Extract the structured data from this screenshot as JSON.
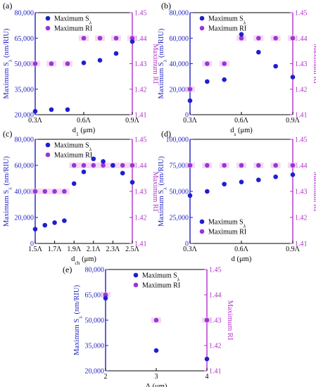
{
  "colors": {
    "left_axis": "#1f1fbf",
    "right_axis": "#b030c8",
    "s_marker": "#1f1fd0",
    "ri_marker": "#9a36d6",
    "ri_glow": "#f2c8f2"
  },
  "chart_data": [
    {
      "type": "scatter",
      "panel_label": "(a)",
      "xlabel": "d",
      "xlabel_sub": "1",
      "xlabel_unit": " (μm)",
      "ylabel_left": "Maximum S",
      "ylabel_left_sub": "λ",
      "ylabel_left_unit": " (nm/RIU)",
      "ylabel_right": "Maximum RI",
      "xlim": [
        0.3,
        0.9
      ],
      "x_ticks": [
        0.3,
        0.6,
        0.9
      ],
      "x_tick_labels": [
        "0.3Λ",
        "0.6Λ",
        "0.9Λ"
      ],
      "ylim_left": [
        20000,
        80000
      ],
      "y_left_ticks": [
        20000,
        35000,
        50000,
        65000,
        80000
      ],
      "y_left_tick_labels": [
        "20,000",
        "35,000",
        "50,000",
        "65,000",
        "80,000"
      ],
      "ylim_right": [
        1.41,
        1.45
      ],
      "y_right_ticks": [
        1.41,
        1.42,
        1.43,
        1.44,
        1.45
      ],
      "y_right_tick_labels": [
        "1.41",
        "1.42",
        "1.43",
        "1.44",
        "1.45"
      ],
      "legend": [
        "Maximum S",
        "Maximum RI"
      ],
      "legend_sub": "λ",
      "legend_position": "top-left",
      "series": [
        {
          "name": "Maximum Sλ",
          "axis": "left",
          "x": [
            0.3,
            0.4,
            0.5,
            0.6,
            0.7,
            0.8,
            0.9
          ],
          "y": [
            22000,
            23000,
            23000,
            50500,
            52000,
            56000,
            63000
          ]
        },
        {
          "name": "Maximum RI",
          "axis": "right",
          "x": [
            0.3,
            0.4,
            0.5,
            0.6,
            0.7,
            0.8,
            0.9
          ],
          "y": [
            1.43,
            1.43,
            1.43,
            1.44,
            1.44,
            1.44,
            1.44
          ]
        }
      ]
    },
    {
      "type": "scatter",
      "panel_label": "(b)",
      "xlabel": "d",
      "xlabel_sub": "s",
      "xlabel_unit": " (μm)",
      "ylabel_left": "Maximum S",
      "ylabel_left_sub": "λ",
      "ylabel_left_unit": " (nm/RIU)",
      "ylabel_right": "Maximum RI",
      "xlim": [
        0.3,
        0.9
      ],
      "x_ticks": [
        0.3,
        0.6,
        0.9
      ],
      "x_tick_labels": [
        "0.3Λ",
        "0.6Λ",
        "0.9Λ"
      ],
      "ylim_left": [
        0,
        80000
      ],
      "y_left_ticks": [
        0,
        20000,
        40000,
        60000,
        80000
      ],
      "y_left_tick_labels": [
        "0",
        "20,000",
        "40,000",
        "60,000",
        "80,000"
      ],
      "ylim_right": [
        1.41,
        1.45
      ],
      "y_right_ticks": [
        1.41,
        1.42,
        1.43,
        1.44,
        1.45
      ],
      "y_right_tick_labels": [
        "1.41",
        "1.42",
        "1.43",
        "1.44",
        "1.45"
      ],
      "legend": [
        "Maximum S",
        "Maximum RI"
      ],
      "legend_sub": "λ",
      "legend_position": "top-left",
      "series": [
        {
          "name": "Maximum Sλ",
          "axis": "left",
          "x": [
            0.3,
            0.4,
            0.5,
            0.6,
            0.7,
            0.8,
            0.9
          ],
          "y": [
            11000,
            26000,
            27500,
            63000,
            49000,
            38000,
            29500
          ]
        },
        {
          "name": "Maximum RI",
          "axis": "right",
          "x": [
            0.3,
            0.4,
            0.5,
            0.6,
            0.7,
            0.8,
            0.9
          ],
          "y": [
            1.42,
            1.43,
            1.43,
            1.44,
            1.44,
            1.44,
            1.44
          ]
        }
      ]
    },
    {
      "type": "scatter",
      "panel_label": "(c)",
      "xlabel": "d",
      "xlabel_sub": "ch",
      "xlabel_unit": " (μm)",
      "ylabel_left": "Maximum S",
      "ylabel_left_sub": "λ",
      "ylabel_left_unit": " (nm/RIU)",
      "ylabel_right": "Maximum RI",
      "xlim": [
        1.5,
        2.5
      ],
      "x_ticks": [
        1.5,
        1.7,
        1.9,
        2.1,
        2.3,
        2.5
      ],
      "x_tick_labels": [
        "1.5Λ",
        "1.7Λ",
        "1.9Λ",
        "2.1Λ",
        "2.3Λ",
        "2.5Λ"
      ],
      "ylim_left": [
        0,
        80000
      ],
      "y_left_ticks": [
        0,
        20000,
        40000,
        60000,
        80000
      ],
      "y_left_tick_labels": [
        "0",
        "20,000",
        "40,000",
        "60,000",
        "80,000"
      ],
      "ylim_right": [
        1.41,
        1.45
      ],
      "y_right_ticks": [
        1.41,
        1.42,
        1.43,
        1.44,
        1.45
      ],
      "y_right_tick_labels": [
        "1.41",
        "1.42",
        "1.43",
        "1.44",
        "1.45"
      ],
      "legend": [
        "Maximum S",
        "Maximum RI"
      ],
      "legend_sub": "λ",
      "legend_position": "top-left",
      "series": [
        {
          "name": "Maximum Sλ",
          "axis": "left",
          "x": [
            1.5,
            1.6,
            1.7,
            1.8,
            1.9,
            2.0,
            2.1,
            2.2,
            2.3,
            2.4,
            2.5
          ],
          "y": [
            11000,
            14000,
            16000,
            17500,
            46000,
            55000,
            65000,
            63000,
            60000,
            54000,
            47000
          ]
        },
        {
          "name": "Maximum RI",
          "axis": "right",
          "x": [
            1.5,
            1.6,
            1.7,
            1.8,
            1.9,
            2.0,
            2.1,
            2.2,
            2.3,
            2.4,
            2.5
          ],
          "y": [
            1.43,
            1.43,
            1.43,
            1.43,
            1.44,
            1.44,
            1.44,
            1.44,
            1.44,
            1.44,
            1.44
          ]
        }
      ]
    },
    {
      "type": "scatter",
      "panel_label": "(d)",
      "xlabel": "d",
      "xlabel_sub": "",
      "xlabel_unit": " (μm)",
      "ylabel_left": "Maximum S",
      "ylabel_left_sub": "λ",
      "ylabel_left_unit": " (nm/RIU)",
      "ylabel_right": "Maximum RI",
      "xlim": [
        0.3,
        0.9
      ],
      "x_ticks": [
        0.3,
        0.6,
        0.9
      ],
      "x_tick_labels": [
        "0.3Λ",
        "0.6Λ",
        "0.9Λ"
      ],
      "ylim_left": [
        0,
        100000
      ],
      "y_left_ticks": [
        0,
        25000,
        50000,
        75000,
        100000
      ],
      "y_left_tick_labels": [
        "0",
        "25,000",
        "50,000",
        "75,000",
        "100,000"
      ],
      "ylim_right": [
        1.41,
        1.45
      ],
      "y_right_ticks": [
        1.41,
        1.42,
        1.43,
        1.44,
        1.45
      ],
      "y_right_tick_labels": [
        "1.41",
        "1.42",
        "1.43",
        "1.44",
        "1.45"
      ],
      "legend": [
        "Maximum S",
        "Maximum RI"
      ],
      "legend_sub": "λ",
      "legend_position": "bottom-left",
      "series": [
        {
          "name": "Maximum Sλ",
          "axis": "left",
          "x": [
            0.3,
            0.4,
            0.5,
            0.6,
            0.7,
            0.8,
            0.9
          ],
          "y": [
            46000,
            50000,
            57000,
            59000,
            61000,
            64000,
            66000
          ]
        },
        {
          "name": "Maximum RI",
          "axis": "right",
          "x": [
            0.3,
            0.4,
            0.5,
            0.6,
            0.7,
            0.8,
            0.9
          ],
          "y": [
            1.44,
            1.44,
            1.44,
            1.44,
            1.44,
            1.44,
            1.44
          ]
        }
      ]
    },
    {
      "type": "scatter",
      "panel_label": "(e)",
      "xlabel": "Λ",
      "xlabel_sub": "",
      "xlabel_unit": " (μm)",
      "ylabel_left": "Maximum S",
      "ylabel_left_sub": "λ",
      "ylabel_left_unit": " (nm/RIU)",
      "ylabel_right": "Maximum RI",
      "xlim": [
        2,
        4
      ],
      "x_ticks": [
        2,
        3,
        4
      ],
      "x_tick_labels": [
        "2",
        "3",
        "4"
      ],
      "ylim_left": [
        20000,
        80000
      ],
      "y_left_ticks": [
        20000,
        35000,
        50000,
        65000,
        80000
      ],
      "y_left_tick_labels": [
        "20,000",
        "35,000",
        "50,000",
        "65,000",
        "80,000"
      ],
      "ylim_right": [
        1.41,
        1.45
      ],
      "y_right_ticks": [
        1.41,
        1.42,
        1.43,
        1.44,
        1.45
      ],
      "y_right_tick_labels": [
        "1.41",
        "1.42",
        "1.43",
        "1.44",
        "1.45"
      ],
      "legend": [
        "Maximum S",
        "Maximum RI"
      ],
      "legend_sub": "λ",
      "legend_position": "top-center",
      "series": [
        {
          "name": "Maximum Sλ",
          "axis": "left",
          "x": [
            2,
            3,
            4
          ],
          "y": [
            63000,
            32000,
            27000
          ]
        },
        {
          "name": "Maximum RI",
          "axis": "right",
          "x": [
            2,
            3,
            4
          ],
          "y": [
            1.44,
            1.43,
            1.43
          ]
        }
      ]
    }
  ]
}
